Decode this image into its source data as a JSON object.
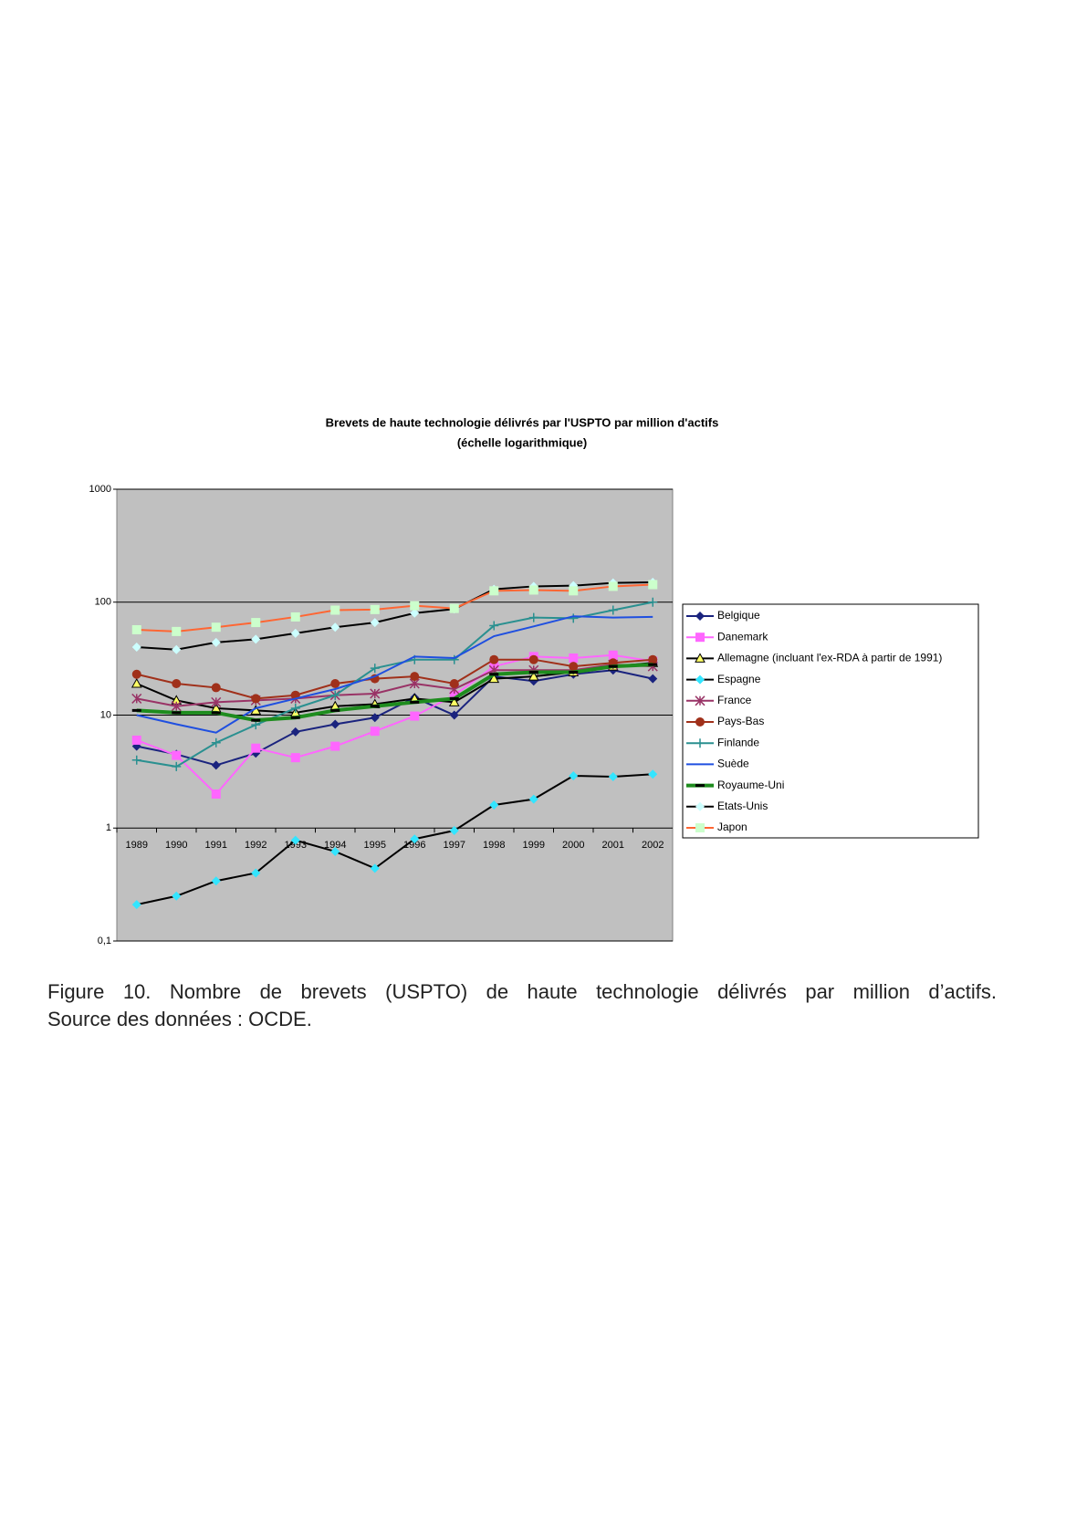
{
  "chart_data": {
    "type": "line",
    "title": "Brevets de haute technologie délivrés par l'USPTO par million d'actifs",
    "subtitle": "(échelle logarithmique)",
    "categories": [
      "1989",
      "1990",
      "1991",
      "1992",
      "1993",
      "1994",
      "1995",
      "1996",
      "1997",
      "1998",
      "1999",
      "2000",
      "2001",
      "2002"
    ],
    "log": true,
    "grid": true,
    "legend": "right",
    "ylim": [
      0.1,
      1000
    ],
    "yticks": [
      {
        "value": 0.1,
        "label": "0,1"
      },
      1,
      10,
      100,
      1000
    ],
    "series": [
      {
        "name": "Belgique",
        "color": "#1a237e",
        "marker": "diamond",
        "marker_color": "#1a237e",
        "values": [
          5.3,
          4.5,
          3.6,
          4.6,
          7.1,
          8.3,
          9.5,
          14.3,
          10,
          22,
          20,
          23,
          25,
          21
        ]
      },
      {
        "name": "Danemark",
        "color": "#ff66ff",
        "marker": "square",
        "marker_color": "#ff66ff",
        "values": [
          6,
          4.4,
          2,
          5.1,
          4.2,
          5.3,
          7.2,
          9.8,
          15,
          27,
          33,
          32,
          34,
          30
        ]
      },
      {
        "name": "Allemagne (incluant l'ex-RDA à partir de 1991)",
        "color": "#000000",
        "marker": "triangle",
        "marker_color": "#ffff66",
        "values": [
          19,
          13.5,
          11.5,
          11,
          10.5,
          12,
          12.5,
          14,
          13,
          21,
          22,
          24,
          27,
          29
        ]
      },
      {
        "name": "Espagne",
        "color": "#000000",
        "marker": "diamond",
        "marker_color": "#33e5ff",
        "values": [
          0.21,
          0.25,
          0.34,
          0.4,
          0.78,
          0.62,
          0.44,
          0.8,
          0.95,
          1.6,
          1.8,
          2.9,
          2.85,
          3
        ]
      },
      {
        "name": "France",
        "color": "#993366",
        "marker": "asterisk",
        "marker_color": "#993366",
        "values": [
          14,
          12,
          13,
          13.5,
          14,
          15,
          15.5,
          19,
          17,
          25,
          25,
          25,
          28,
          27
        ]
      },
      {
        "name": "Pays-Bas",
        "color": "#a0301a",
        "marker": "circle",
        "marker_color": "#a0301a",
        "values": [
          23,
          19,
          17.5,
          14,
          15,
          19,
          21,
          22,
          19,
          31,
          31,
          27,
          29,
          31
        ]
      },
      {
        "name": "Finlande",
        "color": "#2a9090",
        "marker": "plus",
        "marker_color": "#2a9090",
        "values": [
          4,
          3.5,
          5.7,
          8.2,
          11.5,
          15,
          26,
          31,
          31,
          62,
          73,
          72,
          85,
          100
        ]
      },
      {
        "name": "Suède",
        "color": "#1f4fe0",
        "marker": "none",
        "marker_color": "#1f4fe0",
        "values": [
          10,
          8.3,
          7,
          11.5,
          14,
          17,
          22,
          33,
          32,
          50,
          61,
          75,
          73,
          74
        ]
      },
      {
        "name": "Royaume-Uni",
        "color": "#1e8c1e",
        "marker": "dash",
        "marker_color": "#000000",
        "values": [
          11,
          10.5,
          10.5,
          9,
          9.5,
          11,
          12,
          13,
          14,
          23,
          24,
          24,
          27,
          28
        ]
      },
      {
        "name": "Etats-Unis",
        "color": "#000000",
        "marker": "diamond",
        "marker_color": "#ccffff",
        "values": [
          40,
          38,
          44,
          47,
          53,
          60,
          66,
          80,
          87,
          130,
          138,
          140,
          148,
          150
        ]
      },
      {
        "name": "Japon",
        "color": "#ff6633",
        "marker": "square",
        "marker_color": "#ccffcc",
        "values": [
          57,
          55,
          60,
          66,
          74,
          85,
          86,
          93,
          88,
          126,
          128,
          126,
          138,
          143
        ]
      }
    ]
  },
  "caption": {
    "line1": "Figure 10. Nombre de brevets (USPTO) de haute technologie délivrés par million d’actifs.",
    "line2": "Source des données : OCDE."
  }
}
